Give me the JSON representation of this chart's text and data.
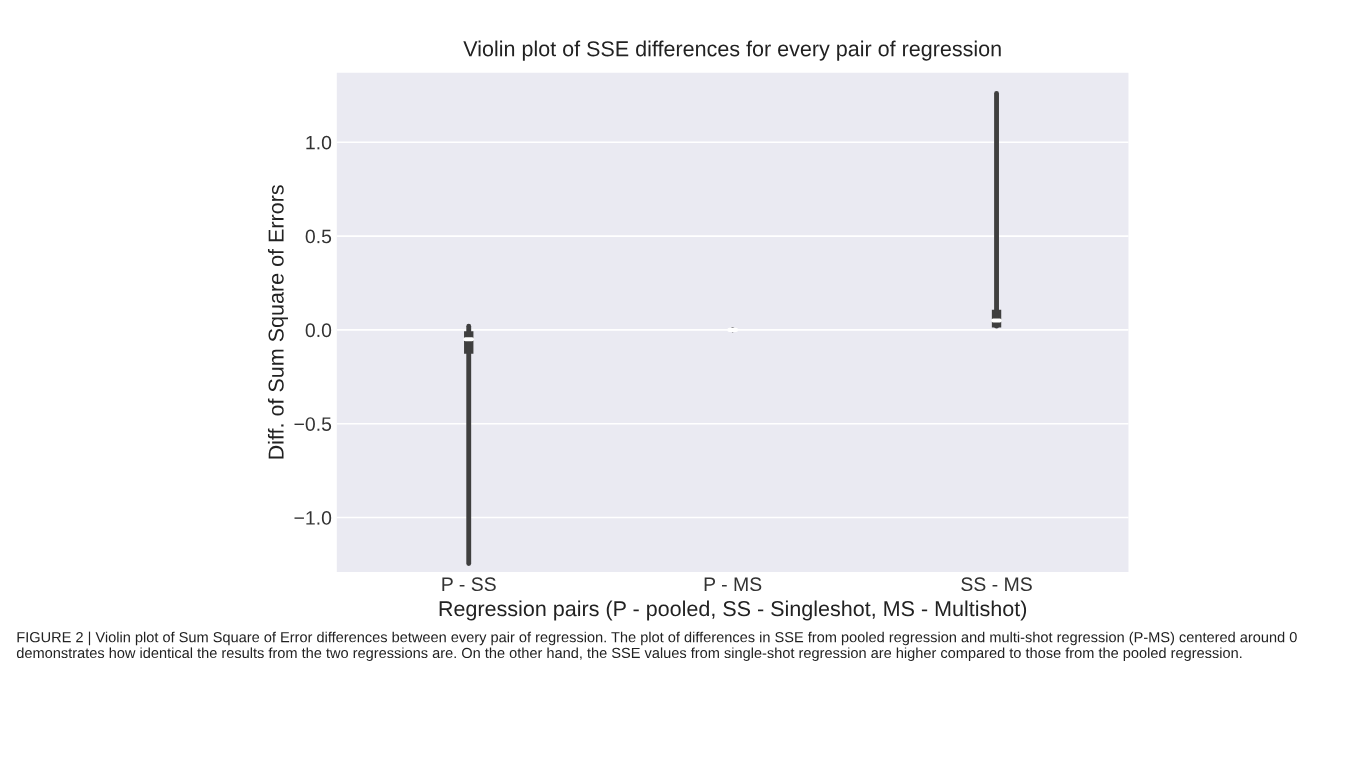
{
  "chart_data": {
    "type": "box",
    "title": "Violin plot of SSE differences for every pair of regression",
    "xlabel": "Regression pairs (P - pooled, SS - Singleshot, MS - Multishot)",
    "ylabel": "Diff. of Sum Square of Errors",
    "categories": [
      "P - SS",
      "P - MS",
      "SS - MS"
    ],
    "boxes": [
      {
        "low": -1.245,
        "q1": -0.12,
        "median": -0.05,
        "q3": -0.015,
        "high": 0.02
      },
      {
        "low": 0.0,
        "q1": 0.0,
        "median": 0.0,
        "q3": 0.0,
        "high": 0.0
      },
      {
        "low": 0.02,
        "q1": 0.02,
        "median": 0.05,
        "q3": 0.1,
        "high": 1.26
      }
    ],
    "color": "#3f3f3f",
    "ylim": [
      -1.29,
      1.37
    ],
    "yticks": [
      {
        "value": -1.0,
        "label": "−1.0"
      },
      {
        "value": -0.5,
        "label": "−0.5"
      },
      {
        "value": 0.0,
        "label": "0.0"
      },
      {
        "value": 0.5,
        "label": "0.5"
      },
      {
        "value": 1.0,
        "label": "1.0"
      }
    ],
    "grid": "y",
    "annotations": [
      "FIGURE 2 | Violin plot of Sum Square of Error differences between every pair of regression. The plot of differences in SSE from pooled regression and multi-shot regression (P-MS) centered around 0 demonstrates how identical the results from the two regressions are. On the other hand, the SSE values from single-shot regression are higher compared to those from the pooled regression."
    ]
  }
}
